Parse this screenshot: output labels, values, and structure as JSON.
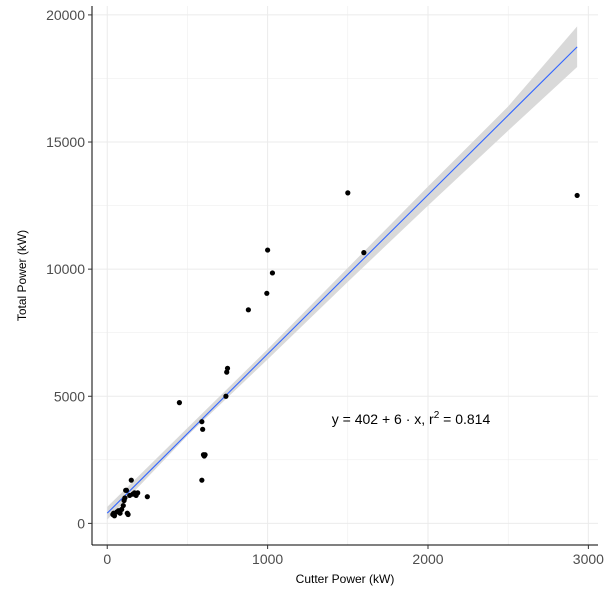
{
  "chart_data": {
    "type": "scatter",
    "xlabel": "Cutter Power (kW)",
    "ylabel": "Total Power (kW)",
    "xlim": [
      -95,
      3060
    ],
    "ylim": [
      -850,
      20350
    ],
    "x_ticks": [
      0,
      1000,
      2000,
      3000
    ],
    "x_tick_labels": [
      "0",
      "1000",
      "2000",
      "3000"
    ],
    "y_ticks": [
      0,
      5000,
      10000,
      15000,
      20000
    ],
    "y_tick_labels": [
      "0",
      "5000",
      "10000",
      "15000",
      "20000"
    ],
    "grid": true,
    "legend": "none",
    "points": [
      {
        "x": 35,
        "y": 350
      },
      {
        "x": 40,
        "y": 400
      },
      {
        "x": 45,
        "y": 300
      },
      {
        "x": 60,
        "y": 450
      },
      {
        "x": 70,
        "y": 500
      },
      {
        "x": 80,
        "y": 400
      },
      {
        "x": 90,
        "y": 550
      },
      {
        "x": 100,
        "y": 700
      },
      {
        "x": 105,
        "y": 900
      },
      {
        "x": 110,
        "y": 1000
      },
      {
        "x": 115,
        "y": 1300
      },
      {
        "x": 120,
        "y": 1300
      },
      {
        "x": 125,
        "y": 400
      },
      {
        "x": 130,
        "y": 350
      },
      {
        "x": 140,
        "y": 1100
      },
      {
        "x": 150,
        "y": 1700
      },
      {
        "x": 160,
        "y": 1150
      },
      {
        "x": 170,
        "y": 1200
      },
      {
        "x": 180,
        "y": 1100
      },
      {
        "x": 190,
        "y": 1200
      },
      {
        "x": 250,
        "y": 1050
      },
      {
        "x": 450,
        "y": 4750
      },
      {
        "x": 590,
        "y": 4000
      },
      {
        "x": 595,
        "y": 3700
      },
      {
        "x": 600,
        "y": 2700
      },
      {
        "x": 605,
        "y": 2650
      },
      {
        "x": 610,
        "y": 2700
      },
      {
        "x": 590,
        "y": 1700
      },
      {
        "x": 740,
        "y": 5000
      },
      {
        "x": 745,
        "y": 5950
      },
      {
        "x": 750,
        "y": 6100
      },
      {
        "x": 880,
        "y": 8400
      },
      {
        "x": 995,
        "y": 9050
      },
      {
        "x": 1000,
        "y": 10750
      },
      {
        "x": 1030,
        "y": 9850
      },
      {
        "x": 1500,
        "y": 13000
      },
      {
        "x": 1600,
        "y": 10650
      },
      {
        "x": 2930,
        "y": 12900
      }
    ],
    "fit": {
      "method": "linear",
      "intercept": 402,
      "slope": 6.26,
      "x_range": [
        0,
        2930
      ],
      "ci_band": [
        {
          "x": 0,
          "lower": 150,
          "upper": 650
        },
        {
          "x": 500,
          "lower": 3450,
          "upper": 3750
        },
        {
          "x": 1000,
          "lower": 6450,
          "upper": 6850
        },
        {
          "x": 1500,
          "lower": 9500,
          "upper": 10050
        },
        {
          "x": 2000,
          "lower": 12500,
          "upper": 13250
        },
        {
          "x": 2500,
          "lower": 15450,
          "upper": 16400
        },
        {
          "x": 2930,
          "lower": 17950,
          "upper": 19550
        }
      ]
    },
    "annotation": {
      "x": 1400,
      "y": 3900,
      "parts": [
        "y = 402 + 6 · x,  r",
        "2",
        " = 0.814"
      ]
    },
    "colors": {
      "point": "#000000",
      "fit_line": "#3366FF",
      "ci_band": "#d9d9d9",
      "grid": "#ebebeb",
      "axis": "#000000"
    }
  }
}
